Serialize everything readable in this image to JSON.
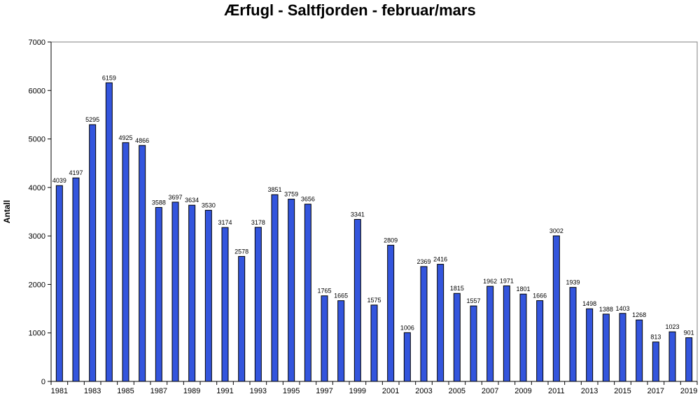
{
  "chart_data": {
    "type": "bar",
    "title": "Ærfugl - Saltfjorden - februar/mars",
    "ylabel": "Antall",
    "xlabel": "",
    "ylim": [
      0,
      7000
    ],
    "yticks": [
      0,
      1000,
      2000,
      3000,
      4000,
      5000,
      6000,
      7000
    ],
    "categories": [
      "1981",
      "1982",
      "1983",
      "1984",
      "1985",
      "1986",
      "1987",
      "1988",
      "1989",
      "1990",
      "1991",
      "1992",
      "1993",
      "1994",
      "1995",
      "1996",
      "1997",
      "1998",
      "1999",
      "2000",
      "2001",
      "2002",
      "2003",
      "2004",
      "2005",
      "2006",
      "2007",
      "2008",
      "2009",
      "2010",
      "2011",
      "2012",
      "2013",
      "2014",
      "2015",
      "2016",
      "2017",
      "2018",
      "2019"
    ],
    "x_tick_labels": [
      "1981",
      "1983",
      "1985",
      "1987",
      "1989",
      "1991",
      "1993",
      "1995",
      "1997",
      "1999",
      "2001",
      "2003",
      "2005",
      "2007",
      "2009",
      "2011",
      "2013",
      "2015",
      "2017",
      "2019"
    ],
    "values": [
      4039,
      4197,
      5295,
      6159,
      4925,
      4866,
      3588,
      3697,
      3634,
      3530,
      3174,
      2578,
      3178,
      3851,
      3759,
      3656,
      1765,
      1665,
      3341,
      1575,
      2809,
      1006,
      2369,
      2416,
      1815,
      1557,
      1962,
      1971,
      1801,
      1666,
      3002,
      1939,
      1498,
      1388,
      1403,
      1268,
      813,
      1023,
      901
    ],
    "bar_color": "#3355DD",
    "grid": false,
    "legend": "none"
  }
}
